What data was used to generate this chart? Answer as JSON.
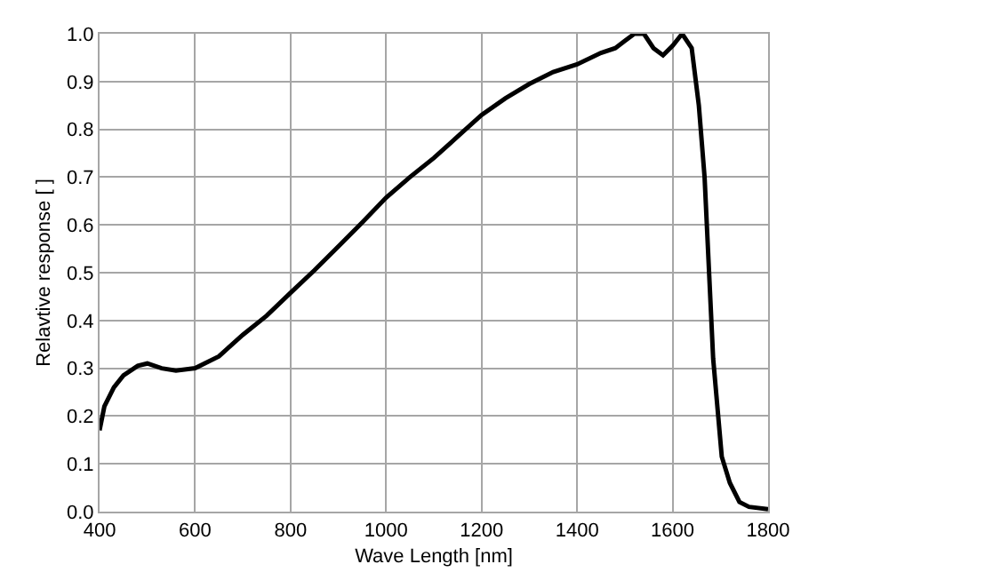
{
  "chart_data": {
    "type": "line",
    "xlabel": "Wave Length [nm]",
    "ylabel": "Relavtive response [ ]",
    "x": [
      400,
      410,
      430,
      450,
      480,
      500,
      530,
      560,
      600,
      650,
      700,
      750,
      800,
      850,
      900,
      950,
      1000,
      1050,
      1100,
      1150,
      1200,
      1250,
      1300,
      1350,
      1400,
      1450,
      1480,
      1500,
      1520,
      1540,
      1560,
      1580,
      1600,
      1620,
      1640,
      1655,
      1667,
      1685,
      1703,
      1720,
      1740,
      1760,
      1800
    ],
    "series": [
      {
        "color": "#000000",
        "values": [
          0.17,
          0.22,
          0.26,
          0.285,
          0.305,
          0.31,
          0.3,
          0.295,
          0.3,
          0.325,
          0.37,
          0.41,
          0.458,
          0.505,
          0.555,
          0.605,
          0.657,
          0.7,
          0.74,
          0.785,
          0.83,
          0.865,
          0.895,
          0.92,
          0.936,
          0.96,
          0.97,
          0.985,
          1.0,
          1.0,
          0.97,
          0.955,
          0.975,
          1.0,
          0.97,
          0.85,
          0.7,
          0.32,
          0.115,
          0.06,
          0.02,
          0.01,
          0.005
        ]
      }
    ],
    "xlim": [
      400,
      1800
    ],
    "xticks": [
      400,
      600,
      800,
      1000,
      1200,
      1400,
      1600,
      1800
    ],
    "ylim": [
      0,
      1
    ],
    "yticks": [
      {
        "value": 0,
        "label": "0.0"
      },
      {
        "value": 0.1,
        "label": "0.1"
      },
      {
        "value": 0.2,
        "label": "0.2"
      },
      {
        "value": 0.3,
        "label": "0.3"
      },
      {
        "value": 0.4,
        "label": "0.4"
      },
      {
        "value": 0.5,
        "label": "0.5"
      },
      {
        "value": 0.6,
        "label": "0.6"
      },
      {
        "value": 0.7,
        "label": "0.7"
      },
      {
        "value": 0.8,
        "label": "0.8"
      },
      {
        "value": 0.9,
        "label": "0.9"
      },
      {
        "value": 1,
        "label": "1.0"
      }
    ],
    "grid": true,
    "marker": "none",
    "line_style": "solid"
  }
}
